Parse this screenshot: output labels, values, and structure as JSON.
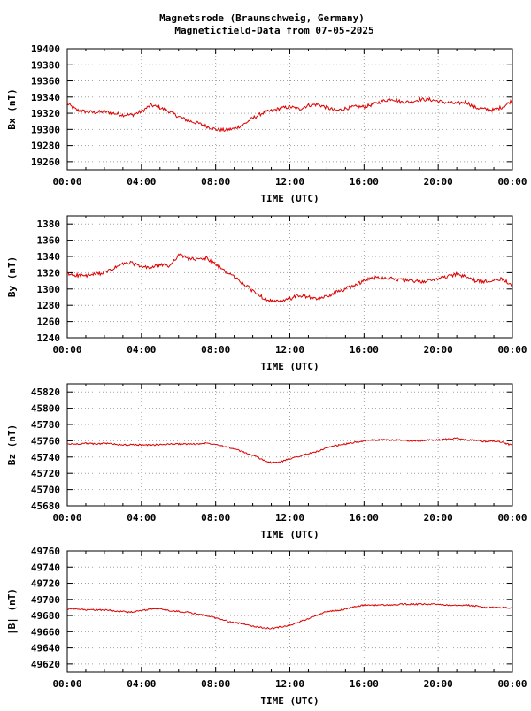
{
  "title_line1": "Magnetsrode (Braunschweig, Germany)",
  "title_line2": "Magneticfield-Data from 07-05-2025",
  "line_color": "#dd0000",
  "chart_data": [
    {
      "type": "line",
      "ylabel": "Bx (nT)",
      "xlabel": "TIME (UTC)",
      "x_ticks": [
        "00:00",
        "04:00",
        "08:00",
        "12:00",
        "16:00",
        "20:00",
        "00:00"
      ],
      "xlim_hours": [
        0,
        24
      ],
      "ylim": [
        19250,
        19400
      ],
      "y_ticks": [
        19260,
        19280,
        19300,
        19320,
        19340,
        19360,
        19380,
        19400
      ],
      "grid": true,
      "x_hours": [
        0,
        0.5,
        1,
        1.5,
        2,
        2.5,
        3,
        3.5,
        4,
        4.5,
        5,
        5.5,
        6,
        6.5,
        7,
        7.5,
        8,
        8.5,
        9,
        9.5,
        10,
        10.5,
        11,
        11.5,
        12,
        12.5,
        13,
        13.5,
        14,
        14.5,
        15,
        15.5,
        16,
        16.5,
        17,
        17.5,
        18,
        18.5,
        19,
        19.5,
        20,
        20.5,
        21,
        21.5,
        22,
        22.5,
        23,
        23.5,
        24
      ],
      "values": [
        19332,
        19324,
        19322,
        19321,
        19322,
        19320,
        19318,
        19318,
        19322,
        19330,
        19327,
        19322,
        19316,
        19311,
        19308,
        19304,
        19300,
        19299,
        19301,
        19306,
        19314,
        19320,
        19323,
        19326,
        19328,
        19325,
        19330,
        19331,
        19327,
        19323,
        19326,
        19328,
        19328,
        19331,
        19335,
        19338,
        19334,
        19334,
        19337,
        19337,
        19335,
        19333,
        19332,
        19334,
        19327,
        19325,
        19324,
        19328,
        19336
      ]
    },
    {
      "type": "line",
      "ylabel": "By (nT)",
      "xlabel": "TIME (UTC)",
      "x_ticks": [
        "00:00",
        "04:00",
        "08:00",
        "12:00",
        "16:00",
        "20:00",
        "00:00"
      ],
      "xlim_hours": [
        0,
        24
      ],
      "ylim": [
        1240,
        1390
      ],
      "y_ticks": [
        1240,
        1260,
        1280,
        1300,
        1320,
        1340,
        1360,
        1380
      ],
      "grid": true,
      "x_hours": [
        0,
        0.5,
        1,
        1.5,
        2,
        2.5,
        3,
        3.5,
        4,
        4.5,
        5,
        5.5,
        6,
        6.5,
        7,
        7.5,
        8,
        8.5,
        9,
        9.5,
        10,
        10.5,
        11,
        11.5,
        12,
        12.5,
        13,
        13.5,
        14,
        14.5,
        15,
        15.5,
        16,
        16.5,
        17,
        17.5,
        18,
        18.5,
        19,
        19.5,
        20,
        20.5,
        21,
        21.5,
        22,
        22.5,
        23,
        23.5,
        24
      ],
      "values": [
        1318,
        1317,
        1316,
        1318,
        1320,
        1325,
        1331,
        1332,
        1327,
        1326,
        1330,
        1328,
        1342,
        1338,
        1336,
        1338,
        1330,
        1322,
        1315,
        1306,
        1298,
        1290,
        1285,
        1284,
        1288,
        1292,
        1290,
        1287,
        1291,
        1296,
        1300,
        1305,
        1310,
        1314,
        1314,
        1313,
        1311,
        1310,
        1309,
        1310,
        1313,
        1315,
        1318,
        1315,
        1310,
        1309,
        1312,
        1312,
        1305
      ]
    },
    {
      "type": "line",
      "ylabel": "Bz (nT)",
      "xlabel": "TIME (UTC)",
      "x_ticks": [
        "00:00",
        "04:00",
        "08:00",
        "12:00",
        "16:00",
        "20:00",
        "00:00"
      ],
      "xlim_hours": [
        0,
        24
      ],
      "ylim": [
        45680,
        45830
      ],
      "y_ticks": [
        45680,
        45700,
        45720,
        45740,
        45760,
        45780,
        45800,
        45820
      ],
      "grid": true,
      "x_hours": [
        0,
        0.5,
        1,
        1.5,
        2,
        2.5,
        3,
        3.5,
        4,
        4.5,
        5,
        5.5,
        6,
        6.5,
        7,
        7.5,
        8,
        8.5,
        9,
        9.5,
        10,
        10.5,
        11,
        11.5,
        12,
        12.5,
        13,
        13.5,
        14,
        14.5,
        15,
        15.5,
        16,
        16.5,
        17,
        17.5,
        18,
        18.5,
        19,
        19.5,
        20,
        20.5,
        21,
        21.5,
        22,
        22.5,
        23,
        23.5,
        24
      ],
      "values": [
        45756,
        45756,
        45757,
        45756,
        45757,
        45756,
        45755,
        45755,
        45755,
        45755,
        45755,
        45756,
        45756,
        45756,
        45756,
        45757,
        45756,
        45753,
        45750,
        45746,
        45742,
        45737,
        45733,
        45734,
        45738,
        45741,
        45744,
        45747,
        45751,
        45754,
        45756,
        45758,
        45760,
        45761,
        45761,
        45761,
        45761,
        45760,
        45760,
        45761,
        45761,
        45762,
        45763,
        45761,
        45761,
        45759,
        45760,
        45758,
        45754
      ]
    },
    {
      "type": "line",
      "ylabel": "|B| (nT)",
      "xlabel": "TIME (UTC)",
      "x_ticks": [
        "00:00",
        "04:00",
        "08:00",
        "12:00",
        "16:00",
        "20:00",
        "00:00"
      ],
      "xlim_hours": [
        0,
        24
      ],
      "ylim": [
        49610,
        49760
      ],
      "y_ticks": [
        49620,
        49640,
        49660,
        49680,
        49700,
        49720,
        49740,
        49760
      ],
      "grid": true,
      "x_hours": [
        0,
        0.5,
        1,
        1.5,
        2,
        2.5,
        3,
        3.5,
        4,
        4.5,
        5,
        5.5,
        6,
        6.5,
        7,
        7.5,
        8,
        8.5,
        9,
        9.5,
        10,
        10.5,
        11,
        11.5,
        12,
        12.5,
        13,
        13.5,
        14,
        14.5,
        15,
        15.5,
        16,
        16.5,
        17,
        17.5,
        18,
        18.5,
        19,
        19.5,
        20,
        20.5,
        21,
        21.5,
        22,
        22.5,
        23,
        23.5,
        24
      ],
      "values": [
        49688,
        49688,
        49687,
        49687,
        49687,
        49686,
        49685,
        49684,
        49686,
        49688,
        49688,
        49686,
        49685,
        49684,
        49682,
        49680,
        49677,
        49674,
        49671,
        49670,
        49667,
        49665,
        49664,
        49666,
        49668,
        49672,
        49676,
        49681,
        49685,
        49686,
        49688,
        49691,
        49693,
        49693,
        49693,
        49693,
        49694,
        49694,
        49694,
        49694,
        49694,
        49693,
        49693,
        49693,
        49692,
        49690,
        49690,
        49690,
        49689
      ]
    }
  ]
}
